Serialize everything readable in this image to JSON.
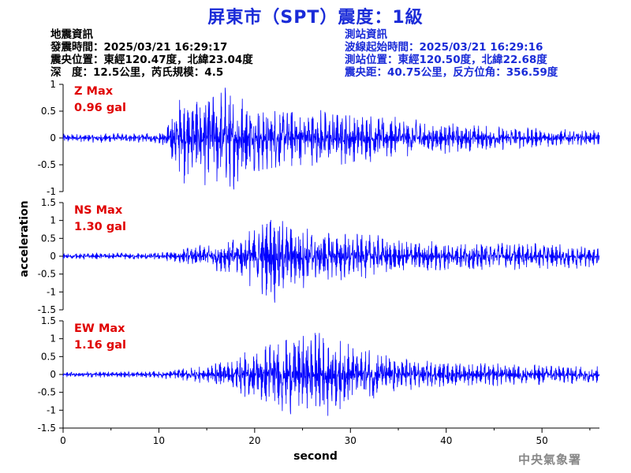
{
  "header": {
    "title": "屏東市（SPT）震度：1級"
  },
  "quake_info": {
    "heading": "地震資訊",
    "origin_time": "發震時間：2025/03/21 16:29:17",
    "epicenter": "震央位置：東經120.47度，北緯23.04度",
    "depth_magnitude": "深　度：12.5公里，芮氏規模：4.5"
  },
  "station_info": {
    "heading": "測站資訊",
    "wave_start": "波線起始時間：2025/03/21 16:29:16",
    "station_location": "測站位置：東經120.50度，北緯22.68度",
    "distance_azimuth": "震央距：40.75公里，反方位角：356.59度"
  },
  "footer": {
    "agency": "中央氣象署"
  },
  "colors": {
    "title": "#1a2bd8",
    "trace": "#0000ff",
    "max_label": "#e00000",
    "axis": "#000000"
  },
  "chart_data": {
    "type": "line",
    "xlabel": "second",
    "ylabel": "acceleration",
    "xlim": [
      0,
      56
    ],
    "x_ticks": [
      "0",
      "10",
      "20",
      "30",
      "40",
      "50"
    ],
    "grid": false,
    "panels": [
      {
        "component": "Z",
        "max_label": "Z Max",
        "max_value": "0.96 gal",
        "peak": 0.96,
        "ylim": [
          -1,
          1
        ],
        "y_ticks": [
          "1",
          "0.5",
          "0",
          "-0.5",
          "-1"
        ],
        "envelope": [
          [
            0,
            0.07
          ],
          [
            10,
            0.08
          ],
          [
            11,
            0.3
          ],
          [
            12,
            0.7
          ],
          [
            15,
            0.75
          ],
          [
            17,
            0.9
          ],
          [
            20,
            0.55
          ],
          [
            24,
            0.5
          ],
          [
            28,
            0.45
          ],
          [
            32,
            0.4
          ],
          [
            36,
            0.3
          ],
          [
            40,
            0.25
          ],
          [
            45,
            0.2
          ],
          [
            50,
            0.15
          ],
          [
            56,
            0.12
          ]
        ]
      },
      {
        "component": "NS",
        "max_label": "NS Max",
        "max_value": "1.30 gal",
        "peak": 1.3,
        "ylim": [
          -1.5,
          1.5
        ],
        "y_ticks": [
          "1.5",
          "1",
          "0.5",
          "0",
          "-0.5",
          "-1",
          "-1.5"
        ],
        "envelope": [
          [
            0,
            0.08
          ],
          [
            10,
            0.1
          ],
          [
            14,
            0.3
          ],
          [
            18,
            0.55
          ],
          [
            21,
            1.1
          ],
          [
            22,
            1.3
          ],
          [
            24,
            0.9
          ],
          [
            28,
            0.75
          ],
          [
            32,
            0.6
          ],
          [
            36,
            0.45
          ],
          [
            40,
            0.42
          ],
          [
            44,
            0.4
          ],
          [
            48,
            0.38
          ],
          [
            52,
            0.35
          ],
          [
            56,
            0.3
          ]
        ]
      },
      {
        "component": "EW",
        "max_label": "EW Max",
        "max_value": "1.16 gal",
        "peak": 1.16,
        "ylim": [
          -1.5,
          1.5
        ],
        "y_ticks": [
          "1.5",
          "1",
          "0.5",
          "0",
          "-0.5",
          "-1",
          "-1.5"
        ],
        "envelope": [
          [
            0,
            0.07
          ],
          [
            10,
            0.09
          ],
          [
            14,
            0.2
          ],
          [
            18,
            0.45
          ],
          [
            20,
            0.7
          ],
          [
            22,
            0.9
          ],
          [
            24,
            1.0
          ],
          [
            27,
            1.1
          ],
          [
            29,
            0.9
          ],
          [
            33,
            0.6
          ],
          [
            38,
            0.35
          ],
          [
            42,
            0.3
          ],
          [
            46,
            0.3
          ],
          [
            50,
            0.28
          ],
          [
            56,
            0.22
          ]
        ]
      }
    ]
  }
}
